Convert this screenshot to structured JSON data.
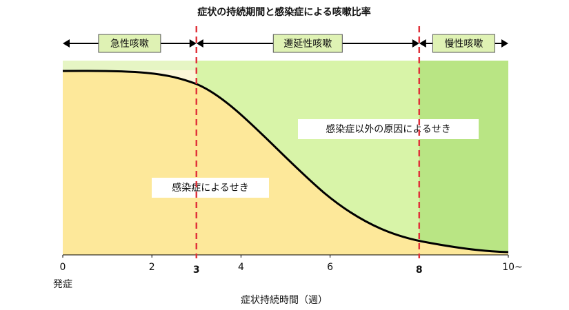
{
  "chart_data": {
    "type": "area",
    "title": "症状の持続期間と感染症による咳嗽比率",
    "xlim": [
      0,
      10
    ],
    "xticks": [
      0,
      2,
      4,
      6,
      {
        "value": 10,
        "label": "10~"
      }
    ],
    "markers": [
      3,
      8
    ],
    "phases": [
      "急性咳嗽",
      "遷延性咳嗽",
      "慢性咳嗽"
    ],
    "region_labels": [
      "感染症以外の原因によるせき",
      "感染症によるせき"
    ],
    "origin_label": "発症",
    "x_label": "症状持続時間（週）"
  }
}
